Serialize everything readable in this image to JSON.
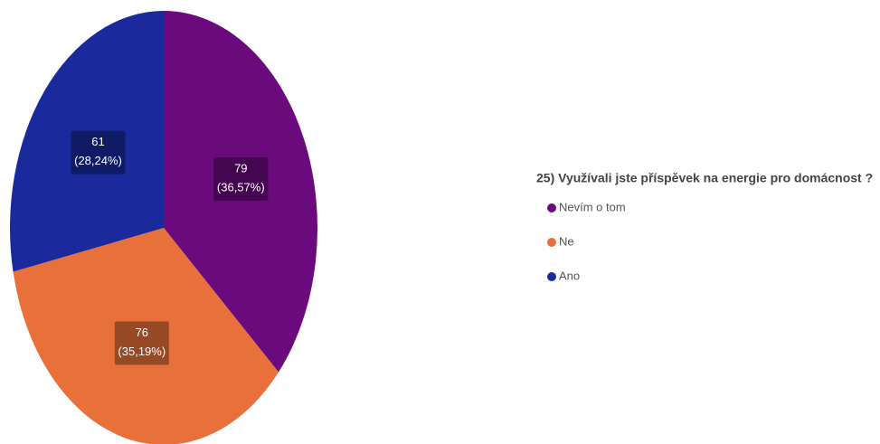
{
  "chart_data": {
    "type": "pie",
    "title": "25) Využívali jste příspěvek na energie pro domácnost ?",
    "categories": [
      "Nevím o tom",
      "Ne",
      "Ano"
    ],
    "values": [
      79,
      76,
      61
    ],
    "shares": [
      {
        "value": 36.57,
        "label": "(36,57%)"
      },
      {
        "value": 35.19,
        "label": "(35,19%)"
      },
      {
        "value": 28.24,
        "label": "(28,24%)"
      }
    ],
    "colors": [
      "#6b0a7d",
      "#e8703a",
      "#1a2a9c"
    ]
  }
}
